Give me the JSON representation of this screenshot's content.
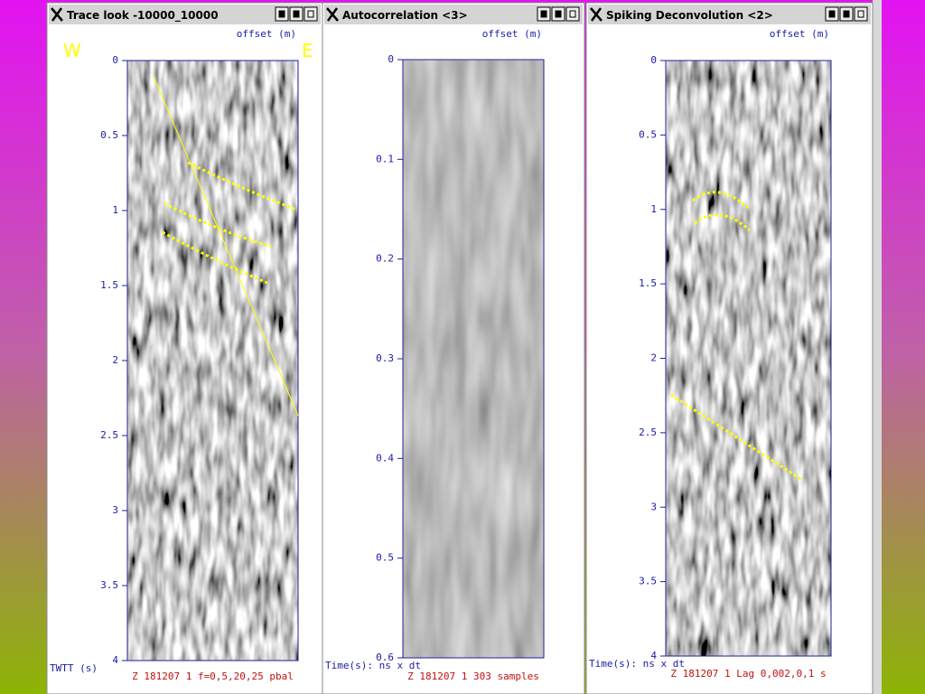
{
  "windows": [
    {
      "title": "Trace look -10000_10000",
      "axis_label": "offset (m)",
      "left_marker": "W",
      "right_marker": "E",
      "ticks": [
        "0",
        "0.5",
        "1",
        "1.5",
        "2",
        "2.5",
        "3",
        "3.5",
        "4"
      ],
      "unit_label": "TWTT (s)",
      "status": "Z 181207 1 f=0,5,20,25 pbal"
    },
    {
      "title": "Autocorrelation <3>",
      "axis_label": "offset (m)",
      "ticks": [
        "0",
        "0.1",
        "0.2",
        "0.3",
        "0.4",
        "0.5",
        "0.6"
      ],
      "unit_label": "Time(s): ns x dt",
      "status": "Z 181207 1 303 samples"
    },
    {
      "title": "Spiking Deconvolution <2>",
      "axis_label": "offset (m)",
      "ticks": [
        "0",
        "0.5",
        "1",
        "1.5",
        "2",
        "2.5",
        "3",
        "3.5",
        "4"
      ],
      "unit_label": "Time(s): ns x dt",
      "status": "Z 181207 1 Lag 0,002,0,1 s"
    }
  ]
}
